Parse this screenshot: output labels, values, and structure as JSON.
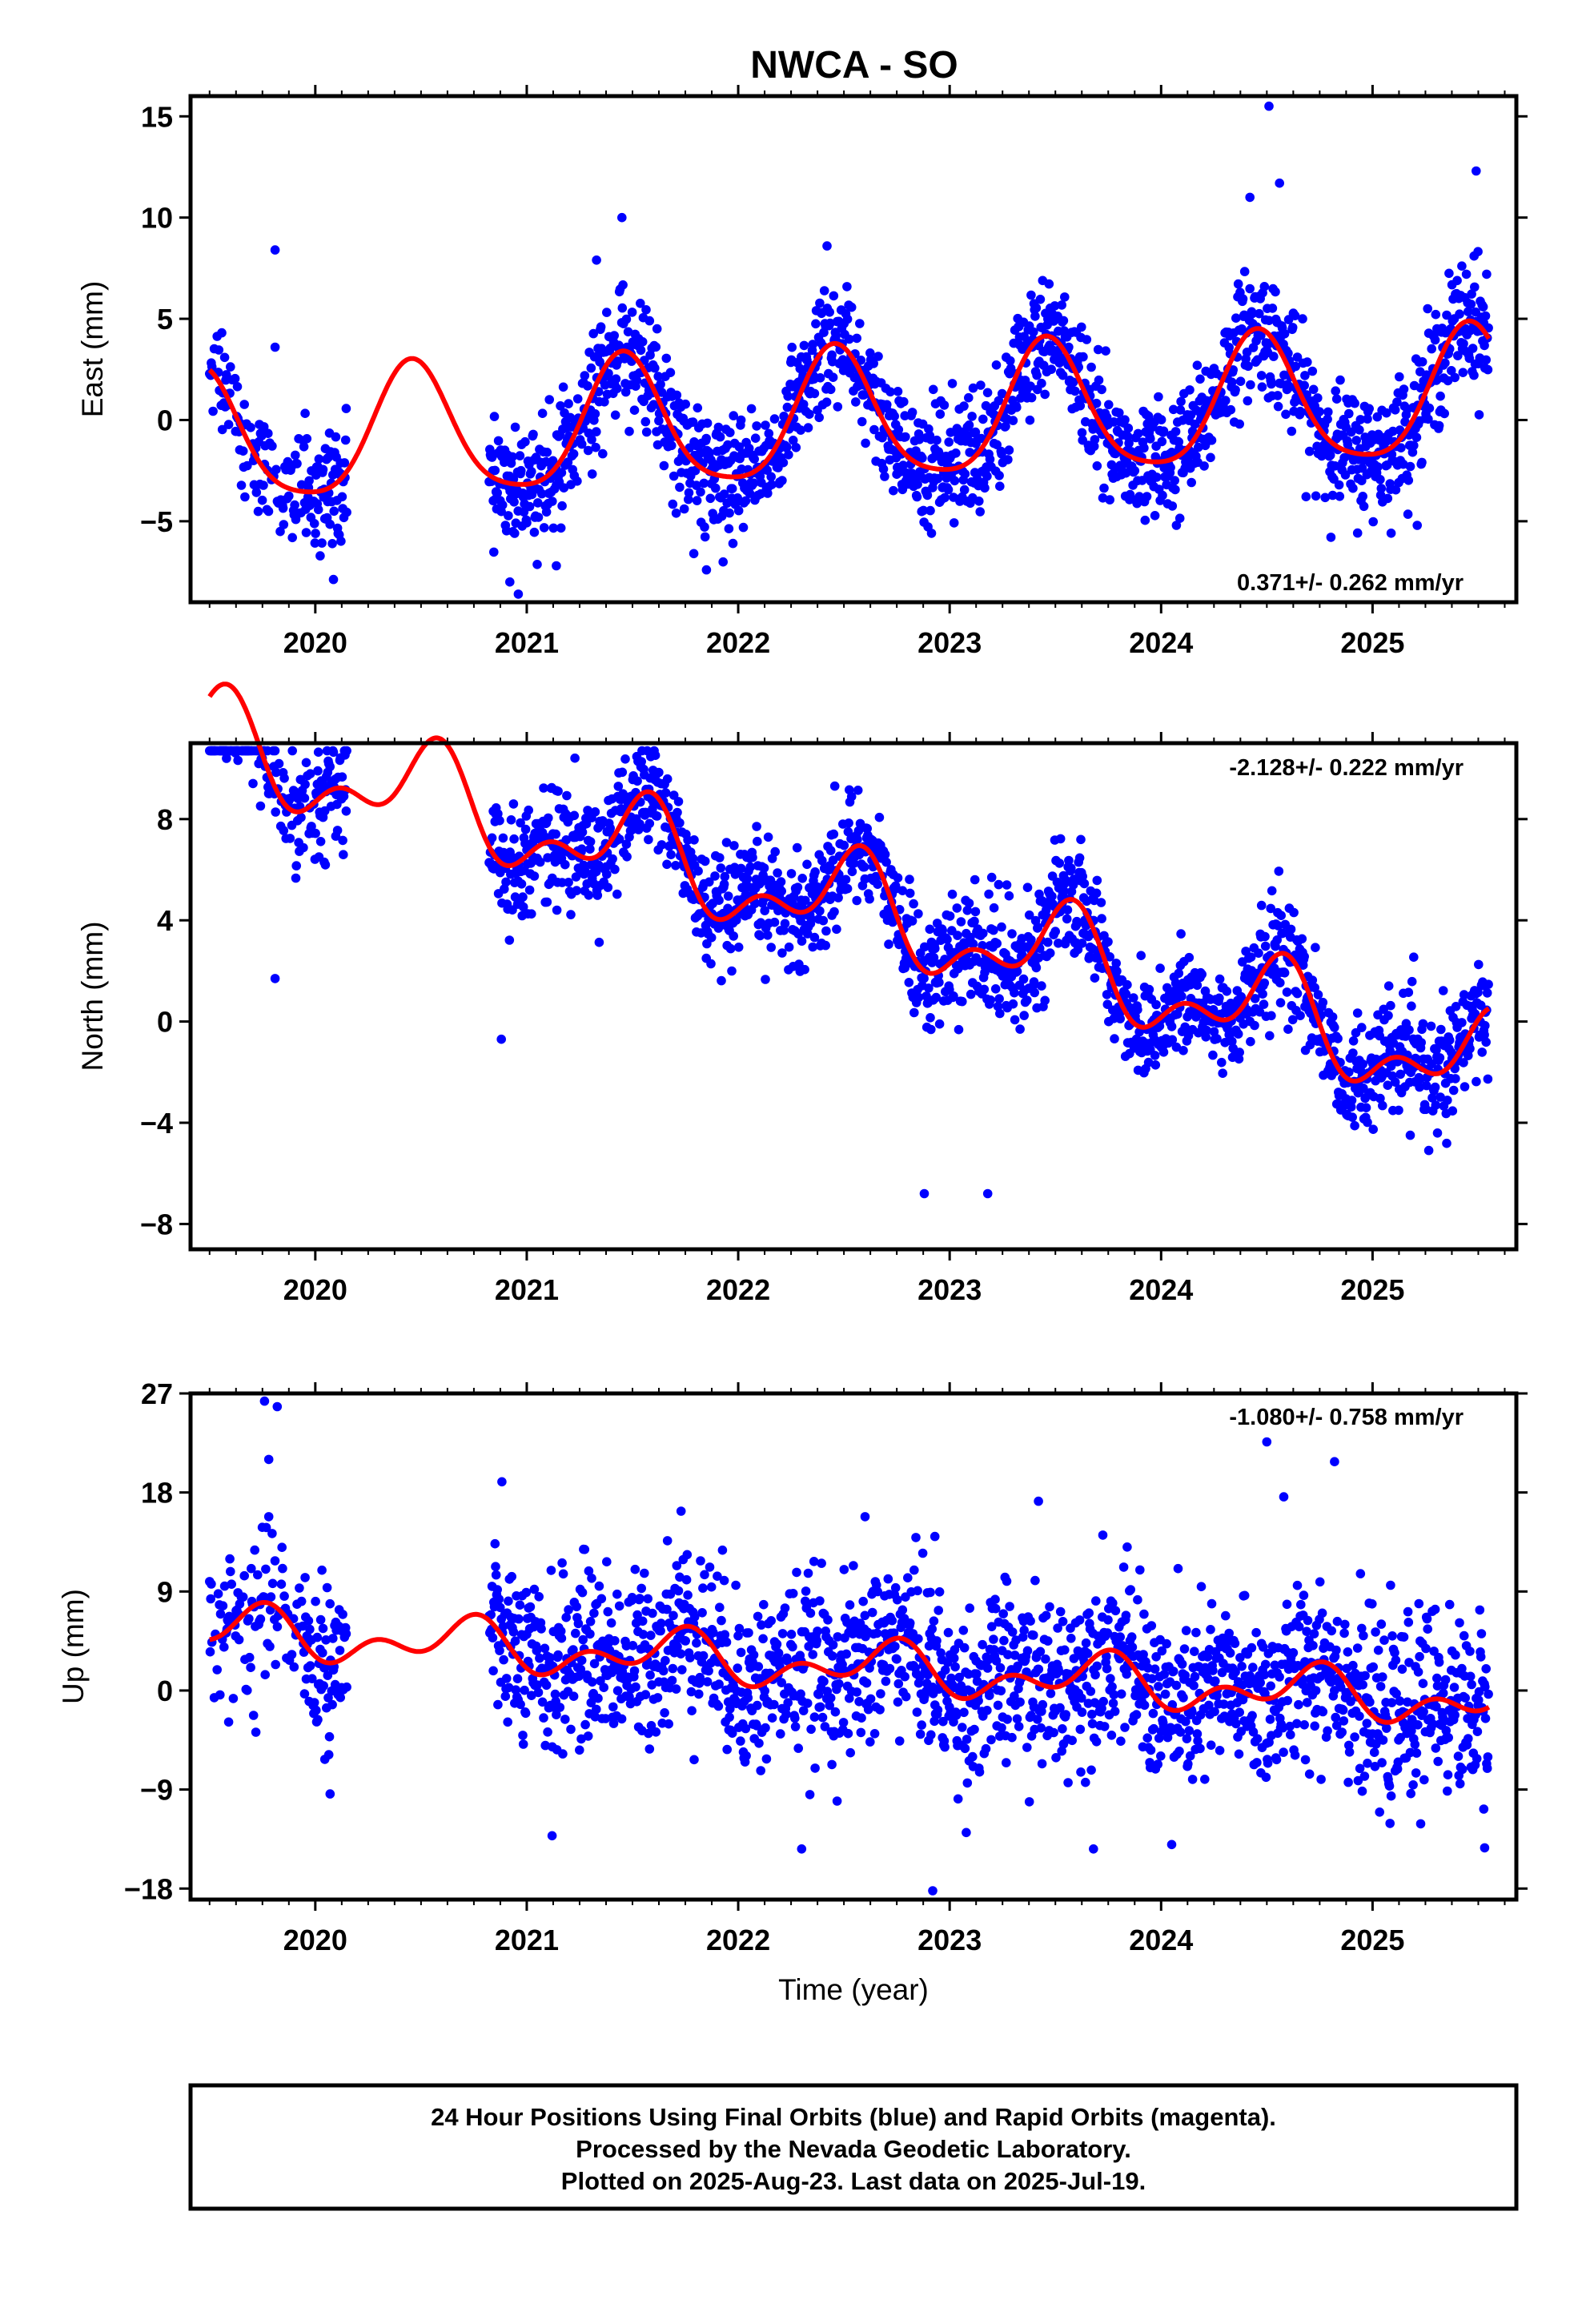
{
  "title": "NWCA - SO",
  "xlabel": "Time (year)",
  "colors": {
    "final_orbits": "#0000ff",
    "model": "#ff0000",
    "axes": "#000000",
    "background": "#ffffff"
  },
  "footer": {
    "line1": "24 Hour Positions Using Final Orbits (blue) and Rapid Orbits (magenta).",
    "line2": "Processed by the Nevada Geodetic Laboratory.",
    "line3": "Plotted on 2025-Aug-23. Last data on 2025-Jul-19."
  },
  "chart_data": [
    {
      "type": "scatter",
      "name": "east",
      "ylabel": "East (mm)",
      "xlim": [
        2019.41,
        2025.68
      ],
      "ylim": [
        -9,
        16
      ],
      "yticks": [
        15,
        10,
        5,
        0,
        -5
      ],
      "ytick_labels": [
        "15",
        "10",
        "5",
        "0",
        "−5"
      ],
      "xticks": [
        2020,
        2021,
        2022,
        2023,
        2024,
        2025
      ],
      "xtick_labels": [
        "2020",
        "2021",
        "2022",
        "2023",
        "2024",
        "2025"
      ],
      "rate_label": "0.371+/- 0.262 mm/yr",
      "rate_position": "bottom-right",
      "data_start": 2019.5,
      "data_end": 2025.55,
      "gap": [
        2020.15,
        2020.82
      ],
      "model": {
        "intercept": 0.0,
        "rate": 0.371,
        "annual_amp": 3.2,
        "annual_peak": 2020.46,
        "semiannual_amp": 0.6,
        "semiannual_peak": 2020.45
      },
      "scatter_sd": 1.5,
      "outliers": [
        {
          "x": 2019.81,
          "y": 8.4
        },
        {
          "x": 2019.81,
          "y": 3.6
        },
        {
          "x": 2021.33,
          "y": 7.9
        },
        {
          "x": 2021.45,
          "y": 10.0
        },
        {
          "x": 2020.92,
          "y": -8.0
        },
        {
          "x": 2020.96,
          "y": -8.6
        },
        {
          "x": 2021.14,
          "y": -7.2
        },
        {
          "x": 2021.85,
          "y": -7.4
        },
        {
          "x": 2021.79,
          "y": -6.6
        },
        {
          "x": 2022.42,
          "y": 8.6
        },
        {
          "x": 2024.42,
          "y": 11.0
        },
        {
          "x": 2024.51,
          "y": 15.5
        },
        {
          "x": 2024.56,
          "y": 11.7
        },
        {
          "x": 2025.49,
          "y": 12.3
        },
        {
          "x": 2025.48,
          "y": 8.1
        }
      ]
    },
    {
      "type": "scatter",
      "name": "north",
      "ylabel": "North (mm)",
      "xlim": [
        2019.41,
        2025.68
      ],
      "ylim": [
        -9,
        11
      ],
      "yticks": [
        8,
        4,
        0,
        -4,
        -8
      ],
      "ytick_labels": [
        "8",
        "4",
        "0",
        "−4",
        "−8"
      ],
      "xticks": [
        2020,
        2021,
        2022,
        2023,
        2024,
        2025
      ],
      "xtick_labels": [
        "2020",
        "2021",
        "2022",
        "2023",
        "2024",
        "2025"
      ],
      "rate_label": "-2.128+/- 0.222 mm/yr",
      "rate_position": "top-right",
      "data_start": 2019.5,
      "data_end": 2025.55,
      "gap": [
        2020.15,
        2020.82
      ],
      "model": {
        "intercept": 4.6,
        "rate": -2.128,
        "annual_amp": 1.6,
        "annual_peak": 2020.54,
        "semiannual_amp": 1.0,
        "semiannual_peak": 2020.1
      },
      "scatter_sd": 1.1,
      "outliers": [
        {
          "x": 2019.58,
          "y": 10.4
        },
        {
          "x": 2019.81,
          "y": 1.7
        },
        {
          "x": 2020.88,
          "y": -0.7
        },
        {
          "x": 2021.38,
          "y": 7.5
        },
        {
          "x": 2021.7,
          "y": 7.0
        },
        {
          "x": 2022.88,
          "y": -6.8
        },
        {
          "x": 2023.18,
          "y": -6.8
        },
        {
          "x": 2023.27,
          "y": 5.4
        },
        {
          "x": 2024.52,
          "y": 2.0
        }
      ]
    },
    {
      "type": "scatter",
      "name": "up",
      "ylabel": "Up (mm)",
      "xlim": [
        2019.41,
        2025.68
      ],
      "ylim": [
        -19,
        27
      ],
      "yticks": [
        27,
        18,
        9,
        0,
        -9,
        -18
      ],
      "ytick_labels": [
        "27",
        "18",
        "9",
        "0",
        "−9",
        "−18"
      ],
      "xticks": [
        2020,
        2021,
        2022,
        2023,
        2024,
        2025
      ],
      "xtick_labels": [
        "2020",
        "2021",
        "2022",
        "2023",
        "2024",
        "2025"
      ],
      "rate_label": "-1.080+/- 0.758 mm/yr",
      "rate_position": "top-right",
      "data_start": 2019.5,
      "data_end": 2025.55,
      "gap": [
        2020.15,
        2020.82
      ],
      "model": {
        "intercept": 2.2,
        "rate": -1.08,
        "annual_amp": 1.6,
        "annual_peak": 2020.7,
        "semiannual_amp": 1.4,
        "semiannual_peak": 2020.28
      },
      "scatter_sd": 3.9,
      "outliers": [
        {
          "x": 2019.76,
          "y": 26.3
        },
        {
          "x": 2019.82,
          "y": 25.8
        },
        {
          "x": 2019.78,
          "y": 21.0
        },
        {
          "x": 2019.78,
          "y": 15.8
        },
        {
          "x": 2020.07,
          "y": -9.4
        },
        {
          "x": 2021.12,
          "y": -13.2
        },
        {
          "x": 2021.73,
          "y": 16.3
        },
        {
          "x": 2022.3,
          "y": -14.4
        },
        {
          "x": 2022.6,
          "y": 15.8
        },
        {
          "x": 2022.92,
          "y": -18.2
        },
        {
          "x": 2022.93,
          "y": 14.0
        },
        {
          "x": 2023.42,
          "y": 17.2
        },
        {
          "x": 2023.68,
          "y": -14.4
        },
        {
          "x": 2024.05,
          "y": -14.0
        },
        {
          "x": 2024.5,
          "y": 22.6
        },
        {
          "x": 2024.58,
          "y": 17.6
        },
        {
          "x": 2024.82,
          "y": 20.8
        },
        {
          "x": 2025.53,
          "y": -14.3
        }
      ]
    }
  ]
}
